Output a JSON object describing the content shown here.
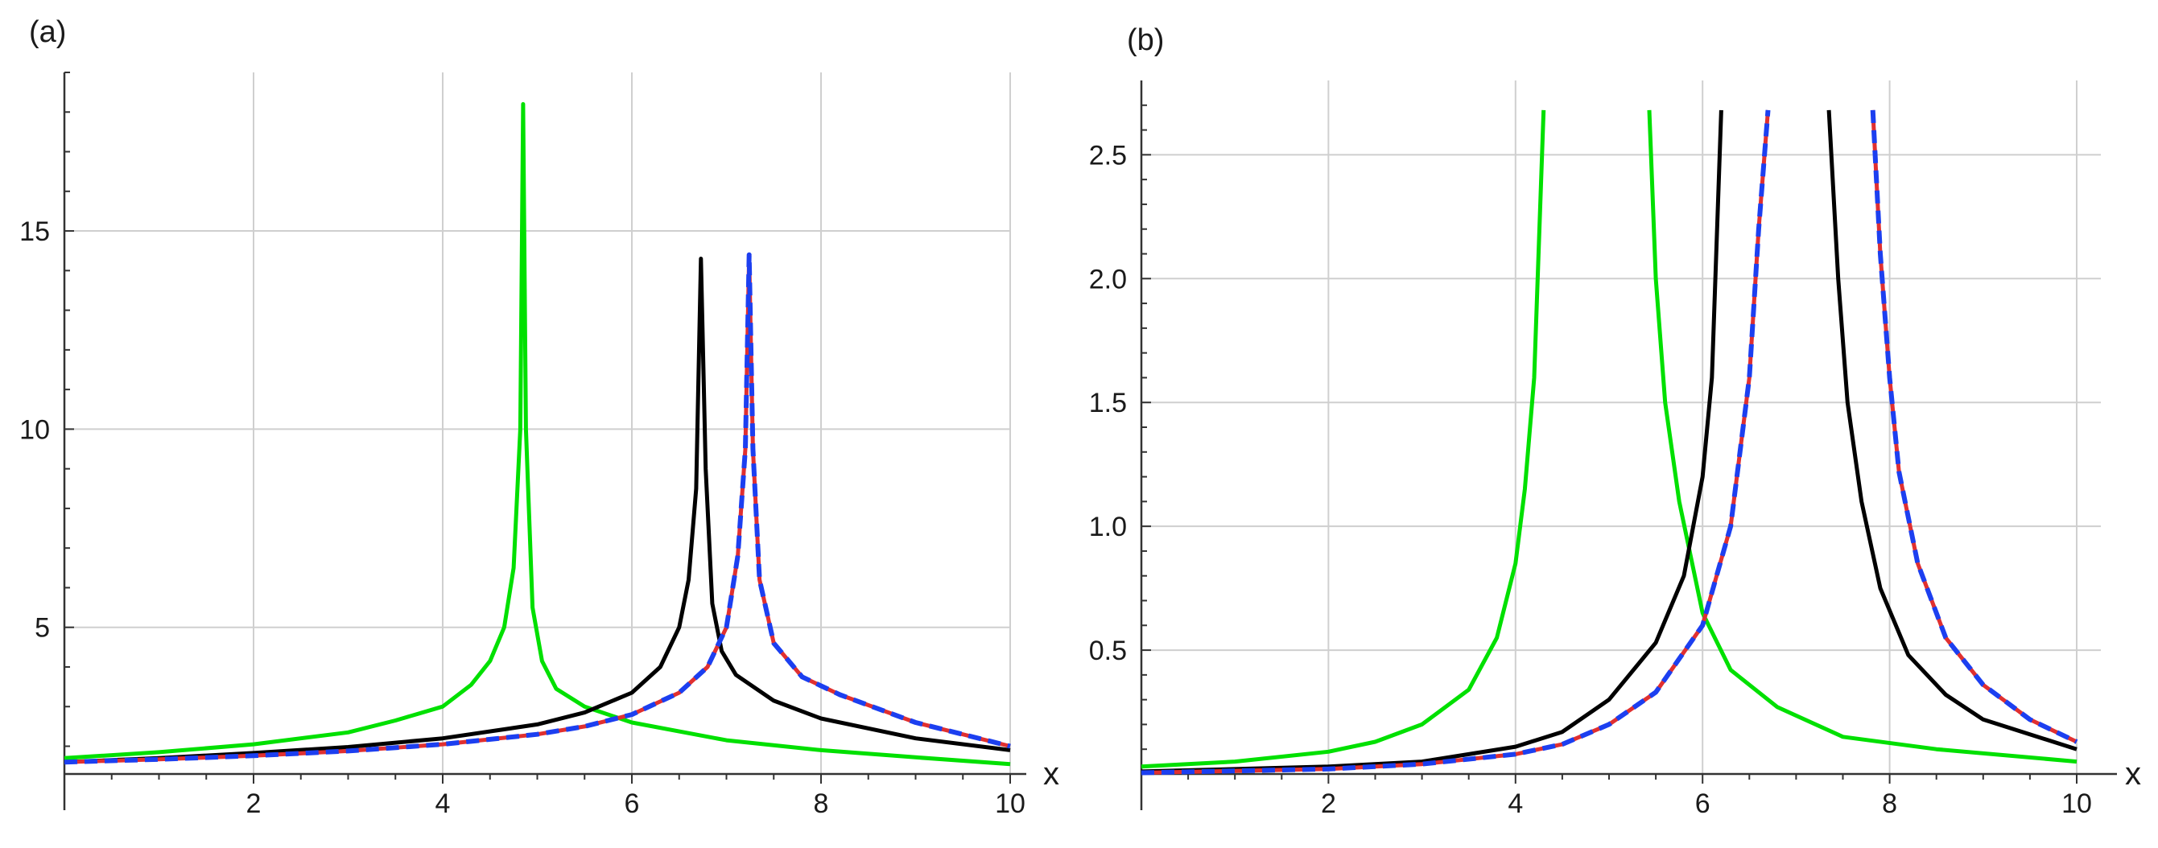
{
  "chart_data": [
    {
      "type": "line",
      "panel_label": "(a)",
      "xlabel": "x",
      "ylabel": "",
      "xlim": [
        0,
        10
      ],
      "ylim": [
        1.3,
        19
      ],
      "x_ticks": [
        2,
        4,
        6,
        8,
        10
      ],
      "y_ticks": [
        5,
        10,
        15
      ],
      "x_tick_labels": [
        "2",
        "4",
        "6",
        "8",
        "10"
      ],
      "y_tick_labels": [
        "5",
        "10",
        "15"
      ],
      "grid": true,
      "series": [
        {
          "color": "#00e000",
          "style": "solid",
          "points": [
            [
              0,
              1.7
            ],
            [
              1,
              1.85
            ],
            [
              2,
              2.05
            ],
            [
              3,
              2.35
            ],
            [
              3.5,
              2.65
            ],
            [
              4,
              3.0
            ],
            [
              4.3,
              3.55
            ],
            [
              4.5,
              4.15
            ],
            [
              4.65,
              5.0
            ],
            [
              4.75,
              6.5
            ],
            [
              4.82,
              10.0
            ],
            [
              4.85,
              18.2
            ],
            [
              4.88,
              10.0
            ],
            [
              4.95,
              5.5
            ],
            [
              5.05,
              4.15
            ],
            [
              5.2,
              3.45
            ],
            [
              5.5,
              3.0
            ],
            [
              6,
              2.6
            ],
            [
              7,
              2.15
            ],
            [
              8,
              1.9
            ],
            [
              9,
              1.72
            ],
            [
              10,
              1.55
            ]
          ]
        },
        {
          "color": "#000000",
          "style": "solid",
          "points": [
            [
              0,
              1.6
            ],
            [
              1,
              1.7
            ],
            [
              2,
              1.83
            ],
            [
              3,
              1.98
            ],
            [
              4,
              2.2
            ],
            [
              5,
              2.55
            ],
            [
              5.5,
              2.85
            ],
            [
              6,
              3.35
            ],
            [
              6.3,
              4.0
            ],
            [
              6.5,
              5.0
            ],
            [
              6.6,
              6.2
            ],
            [
              6.68,
              8.5
            ],
            [
              6.73,
              14.3
            ],
            [
              6.78,
              9.0
            ],
            [
              6.85,
              5.6
            ],
            [
              6.95,
              4.4
            ],
            [
              7.1,
              3.8
            ],
            [
              7.5,
              3.15
            ],
            [
              8,
              2.7
            ],
            [
              9,
              2.2
            ],
            [
              10,
              1.9
            ]
          ]
        },
        {
          "color": "#e03030",
          "style": "solid",
          "points": [
            [
              0,
              1.6
            ],
            [
              1,
              1.67
            ],
            [
              2,
              1.76
            ],
            [
              3,
              1.88
            ],
            [
              4,
              2.05
            ],
            [
              5,
              2.3
            ],
            [
              5.5,
              2.5
            ],
            [
              6,
              2.8
            ],
            [
              6.5,
              3.35
            ],
            [
              6.8,
              4.0
            ],
            [
              7.0,
              5.0
            ],
            [
              7.12,
              6.8
            ],
            [
              7.2,
              9.5
            ],
            [
              7.24,
              14.4
            ],
            [
              7.28,
              9.5
            ],
            [
              7.35,
              6.2
            ],
            [
              7.5,
              4.6
            ],
            [
              7.8,
              3.75
            ],
            [
              8.2,
              3.3
            ],
            [
              9,
              2.6
            ],
            [
              10,
              2.0
            ]
          ]
        },
        {
          "color": "#1c3ff0",
          "style": "dashed",
          "points": [
            [
              0,
              1.6
            ],
            [
              1,
              1.67
            ],
            [
              2,
              1.76
            ],
            [
              3,
              1.88
            ],
            [
              4,
              2.05
            ],
            [
              5,
              2.3
            ],
            [
              5.5,
              2.5
            ],
            [
              6,
              2.8
            ],
            [
              6.5,
              3.35
            ],
            [
              6.8,
              4.0
            ],
            [
              7.0,
              5.0
            ],
            [
              7.12,
              6.8
            ],
            [
              7.2,
              9.5
            ],
            [
              7.24,
              14.4
            ],
            [
              7.28,
              9.5
            ],
            [
              7.35,
              6.2
            ],
            [
              7.5,
              4.6
            ],
            [
              7.8,
              3.75
            ],
            [
              8.2,
              3.3
            ],
            [
              9,
              2.6
            ],
            [
              10,
              2.0
            ]
          ]
        }
      ]
    },
    {
      "type": "line",
      "panel_label": "(b)",
      "xlabel": "x",
      "ylabel": "",
      "xlim": [
        0,
        10
      ],
      "ylim": [
        0,
        2.8
      ],
      "x_ticks": [
        2,
        4,
        6,
        8,
        10
      ],
      "y_ticks": [
        0.5,
        1.0,
        1.5,
        2.0,
        2.5
      ],
      "x_tick_labels": [
        "2",
        "4",
        "6",
        "8",
        "10"
      ],
      "y_tick_labels": [
        "0.5",
        "1.0",
        "1.5",
        "2.0",
        "2.5"
      ],
      "grid": true,
      "series": [
        {
          "color": "#00e000",
          "style": "solid",
          "segments": [
            [
              [
                0,
                0.03
              ],
              [
                1,
                0.05
              ],
              [
                2,
                0.09
              ],
              [
                2.5,
                0.13
              ],
              [
                3,
                0.2
              ],
              [
                3.5,
                0.34
              ],
              [
                3.8,
                0.55
              ],
              [
                4.0,
                0.85
              ],
              [
                4.1,
                1.15
              ],
              [
                4.2,
                1.6
              ],
              [
                4.3,
                2.68
              ]
            ],
            [
              [
                5.43,
                2.68
              ],
              [
                5.5,
                2.0
              ],
              [
                5.6,
                1.5
              ],
              [
                5.75,
                1.1
              ],
              [
                6,
                0.65
              ],
              [
                6.3,
                0.42
              ],
              [
                6.8,
                0.27
              ],
              [
                7.5,
                0.15
              ],
              [
                8.5,
                0.1
              ],
              [
                10,
                0.05
              ]
            ]
          ]
        },
        {
          "color": "#000000",
          "style": "solid",
          "segments": [
            [
              [
                0,
                0.01
              ],
              [
                2,
                0.03
              ],
              [
                3,
                0.05
              ],
              [
                4,
                0.11
              ],
              [
                4.5,
                0.17
              ],
              [
                5,
                0.3
              ],
              [
                5.5,
                0.53
              ],
              [
                5.8,
                0.8
              ],
              [
                6.0,
                1.2
              ],
              [
                6.1,
                1.6
              ],
              [
                6.2,
                2.68
              ]
            ],
            [
              [
                7.35,
                2.68
              ],
              [
                7.45,
                2.0
              ],
              [
                7.55,
                1.5
              ],
              [
                7.7,
                1.1
              ],
              [
                7.9,
                0.75
              ],
              [
                8.2,
                0.48
              ],
              [
                8.6,
                0.32
              ],
              [
                9,
                0.22
              ],
              [
                10,
                0.1
              ]
            ]
          ]
        },
        {
          "color": "#e03030",
          "style": "solid",
          "segments": [
            [
              [
                0,
                0.005
              ],
              [
                2,
                0.02
              ],
              [
                3,
                0.04
              ],
              [
                4,
                0.08
              ],
              [
                4.5,
                0.12
              ],
              [
                5,
                0.2
              ],
              [
                5.5,
                0.33
              ],
              [
                6,
                0.6
              ],
              [
                6.3,
                1.0
              ],
              [
                6.5,
                1.6
              ],
              [
                6.6,
                2.2
              ],
              [
                6.7,
                2.68
              ]
            ],
            [
              [
                7.82,
                2.68
              ],
              [
                7.9,
                2.1
              ],
              [
                8.0,
                1.6
              ],
              [
                8.1,
                1.22
              ],
              [
                8.3,
                0.85
              ],
              [
                8.6,
                0.55
              ],
              [
                9,
                0.36
              ],
              [
                9.5,
                0.22
              ],
              [
                10,
                0.13
              ]
            ]
          ]
        },
        {
          "color": "#1c3ff0",
          "style": "dashed",
          "segments": [
            [
              [
                0,
                0.005
              ],
              [
                2,
                0.02
              ],
              [
                3,
                0.04
              ],
              [
                4,
                0.08
              ],
              [
                4.5,
                0.12
              ],
              [
                5,
                0.2
              ],
              [
                5.5,
                0.33
              ],
              [
                6,
                0.6
              ],
              [
                6.3,
                1.0
              ],
              [
                6.5,
                1.6
              ],
              [
                6.6,
                2.2
              ],
              [
                6.7,
                2.68
              ]
            ],
            [
              [
                7.82,
                2.68
              ],
              [
                7.9,
                2.1
              ],
              [
                8.0,
                1.6
              ],
              [
                8.1,
                1.22
              ],
              [
                8.3,
                0.85
              ],
              [
                8.6,
                0.55
              ],
              [
                9,
                0.36
              ],
              [
                9.5,
                0.22
              ],
              [
                10,
                0.13
              ]
            ]
          ]
        }
      ]
    }
  ]
}
